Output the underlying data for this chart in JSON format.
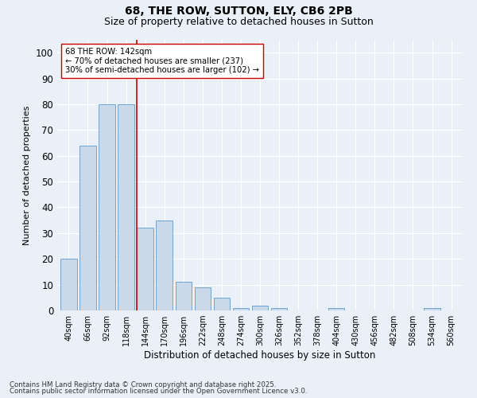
{
  "title1": "68, THE ROW, SUTTON, ELY, CB6 2PB",
  "title2": "Size of property relative to detached houses in Sutton",
  "xlabel": "Distribution of detached houses by size in Sutton",
  "ylabel": "Number of detached properties",
  "categories": [
    "40sqm",
    "66sqm",
    "92sqm",
    "118sqm",
    "144sqm",
    "170sqm",
    "196sqm",
    "222sqm",
    "248sqm",
    "274sqm",
    "300sqm",
    "326sqm",
    "352sqm",
    "378sqm",
    "404sqm",
    "430sqm",
    "456sqm",
    "482sqm",
    "508sqm",
    "534sqm",
    "560sqm"
  ],
  "values": [
    20,
    64,
    80,
    80,
    32,
    35,
    11,
    9,
    5,
    1,
    2,
    1,
    0,
    0,
    1,
    0,
    0,
    0,
    0,
    1,
    0
  ],
  "bar_color": "#c9d9e8",
  "bar_edge_color": "#5b9bd5",
  "reference_line_color": "#cc0000",
  "annotation_text": "68 THE ROW: 142sqm\n← 70% of detached houses are smaller (237)\n30% of semi-detached houses are larger (102) →",
  "annotation_box_color": "#ffffff",
  "annotation_box_edge": "#cc0000",
  "ylim": [
    0,
    105
  ],
  "yticks": [
    0,
    10,
    20,
    30,
    40,
    50,
    60,
    70,
    80,
    90,
    100
  ],
  "footer1": "Contains HM Land Registry data © Crown copyright and database right 2025.",
  "footer2": "Contains public sector information licensed under the Open Government Licence v3.0.",
  "bg_color": "#eaf0f7",
  "plot_bg_color": "#eaf0f7",
  "grid_color": "#ffffff",
  "title1_fontsize": 10,
  "title2_fontsize": 9,
  "tick_label_fontsize": 7,
  "ylabel_fontsize": 8,
  "xlabel_fontsize": 8.5
}
